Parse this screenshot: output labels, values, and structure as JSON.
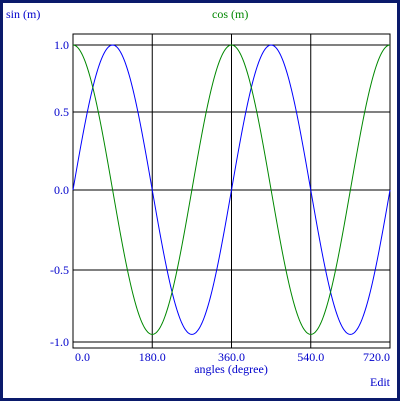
{
  "chart_data": {
    "type": "line",
    "title": "",
    "xlabel": "angles (degree)",
    "ylabel": "sin (m)",
    "secondary_label": "cos (m)",
    "xlim": [
      0,
      720
    ],
    "ylim": [
      -1,
      1
    ],
    "x_ticks": [
      0,
      180,
      360,
      540,
      720
    ],
    "x_tick_labels": [
      "0.0",
      "180.0",
      "360.0",
      "540.0",
      "720.0"
    ],
    "y_ticks": [
      1,
      0.5,
      0,
      -0.5,
      -1
    ],
    "y_tick_labels": [
      "1.0",
      "0.5",
      "0.0",
      "-0.5",
      "-1.0"
    ],
    "y_scale_displayed": [
      -0.95,
      1.0
    ],
    "grid": true,
    "series": [
      {
        "name": "sin (m)",
        "function": "sin",
        "color": "#0000ff",
        "x_step": 10
      },
      {
        "name": "cos (m)",
        "function": "cos",
        "color": "#008800",
        "x_step": 10
      }
    ]
  },
  "ui": {
    "edit_label": "Edit",
    "accent_color": "#0000cc",
    "border_color": "#0a1a6b"
  }
}
